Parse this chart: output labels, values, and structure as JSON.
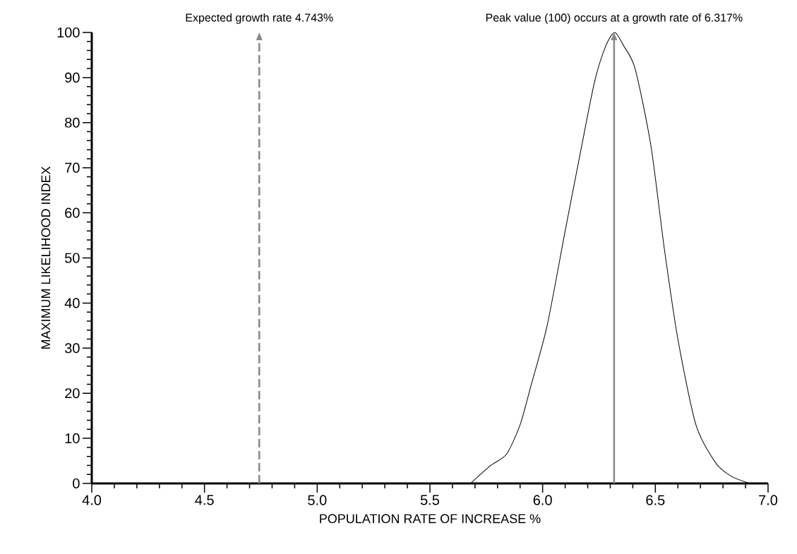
{
  "chart_data": {
    "type": "line",
    "xlabel": "POPULATION RATE OF INCREASE %",
    "ylabel": "MAXIMUM LIKELIHOOD INDEX",
    "x": [
      5.68,
      5.77,
      5.84,
      5.9,
      5.95,
      6.02,
      6.1,
      6.17,
      6.23,
      6.28,
      6.32,
      6.36,
      6.41,
      6.48,
      6.54,
      6.6,
      6.68,
      6.77,
      6.84,
      6.92
    ],
    "values": [
      0,
      4,
      6.5,
      13,
      22,
      35,
      56,
      74,
      89,
      97,
      100,
      97,
      92,
      75,
      52,
      32,
      13,
      4.4,
      1.5,
      0
    ],
    "color": "#000000",
    "line_style": "solid",
    "xlim": [
      4,
      7
    ],
    "xticks": [
      {
        "value": 4,
        "label": "4.0"
      },
      {
        "value": 4.5,
        "label": "4.5"
      },
      {
        "value": 5,
        "label": "5.0"
      },
      {
        "value": 5.5,
        "label": "5.5"
      },
      {
        "value": 6,
        "label": "6.0"
      },
      {
        "value": 6.5,
        "label": "6.5"
      },
      {
        "value": 7,
        "label": "7.0"
      }
    ],
    "ylim": [
      0,
      100
    ],
    "yticks": [
      0,
      10,
      20,
      30,
      40,
      50,
      60,
      70,
      80,
      90,
      100
    ],
    "ref_lines": [
      {
        "axis": "x",
        "value": 4.743,
        "label": "Expected growth rate 4.743%",
        "color": "#888888",
        "line_style": "dashed"
      },
      {
        "axis": "x",
        "value": 6.317,
        "label": "Peak value (100) occurs at a growth rate of 6.317%",
        "color": "#888888",
        "line_style": "solid"
      }
    ]
  }
}
